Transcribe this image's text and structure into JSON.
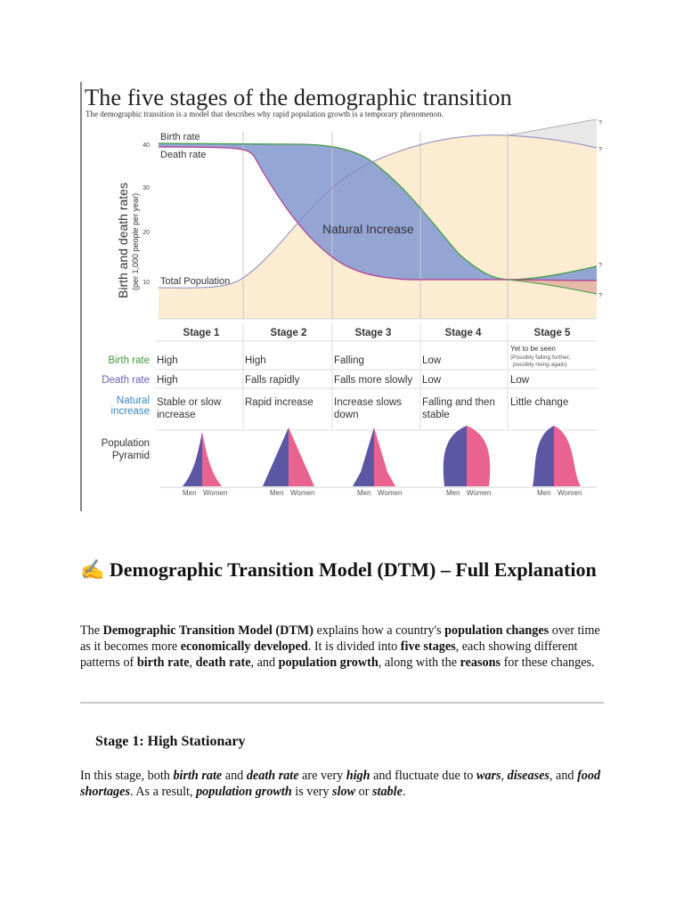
{
  "figure": {
    "title": "The five stages of the demographic transition",
    "subtitle": "The demographic transition is a model that describes why rapid population growth is a temporary phenomenon.",
    "ylabel": "Birth and death rates",
    "ylabel_sub": "(per 1,000 people per year)",
    "yticks": [
      "40",
      "30",
      "20",
      "10"
    ],
    "curve_labels": {
      "birth": "Birth rate",
      "death": "Death rate",
      "population": "Total Population",
      "natural": "Natural Increase"
    },
    "question_mark": "?",
    "stages": [
      "Stage 1",
      "Stage 2",
      "Stage 3",
      "Stage 4",
      "Stage 5"
    ],
    "rows": [
      {
        "label": "Birth rate",
        "color": "#3d9b3d",
        "values": [
          "High",
          "High",
          "Falling",
          "Low",
          "Yet to be seen"
        ],
        "note": [
          "(Possibly falling further,",
          "possibly rising again)"
        ]
      },
      {
        "label": "Death rate",
        "color": "#6a5cb5",
        "values": [
          "High",
          "Falls rapidly",
          "Falls more slowly",
          "Low",
          "Low"
        ]
      },
      {
        "label_lines": [
          "Natural",
          "increase"
        ],
        "color": "#3a86c8",
        "values_lines": [
          [
            "Stable or slow",
            "increase"
          ],
          [
            "Rapid increase"
          ],
          [
            "Increase slows",
            "down"
          ],
          [
            "Falling and then",
            "stable"
          ],
          [
            "Little change"
          ]
        ]
      }
    ],
    "pyramid_label_lines": [
      "Population",
      "Pyramid"
    ],
    "pyramid_men": "Men",
    "pyramid_women": "Women",
    "colors": {
      "men": "#5b57a3",
      "women": "#e8638f",
      "natural_fill": "#8ea1d4",
      "population_fill": "#fbecd2"
    }
  },
  "chart_data": {
    "type": "line",
    "title": "The five stages of the demographic transition",
    "ylabel": "Birth and death rates (per 1,000 people per year)",
    "ylim": [
      0,
      45
    ],
    "categories": [
      "Stage 1",
      "Stage 2",
      "Stage 3",
      "Stage 4",
      "Stage 5"
    ],
    "series": [
      {
        "name": "Birth rate",
        "values": [
          40,
          40,
          30,
          11,
          11
        ]
      },
      {
        "name": "Death rate",
        "values": [
          39,
          25,
          11,
          11,
          11
        ]
      },
      {
        "name": "Total Population",
        "values": [
          9,
          16,
          32,
          41,
          40
        ]
      }
    ]
  },
  "doc": {
    "title_icon": "✍",
    "title": "Demographic Transition Model (DTM) – Full Explanation",
    "intro": [
      {
        "t": "The "
      },
      {
        "t": "Demographic Transition Model (DTM)",
        "b": true
      },
      {
        "t": " explains how a country's "
      },
      {
        "t": "population changes",
        "b": true
      },
      {
        "t": " over time as it becomes more "
      },
      {
        "t": "economically developed",
        "b": true
      },
      {
        "t": ". It is divided into "
      },
      {
        "t": "five stages",
        "b": true
      },
      {
        "t": ", each showing different patterns of "
      },
      {
        "t": "birth rate",
        "b": true
      },
      {
        "t": ", "
      },
      {
        "t": "death rate",
        "b": true
      },
      {
        "t": ", and "
      },
      {
        "t": "population growth",
        "b": true
      },
      {
        "t": ", along with the "
      },
      {
        "t": "reasons",
        "b": true
      },
      {
        "t": " for these changes."
      }
    ],
    "stage1_heading": "Stage 1: High Stationary",
    "stage1_text": [
      {
        "t": "In this stage, both "
      },
      {
        "t": "birth rate",
        "bi": true
      },
      {
        "t": " and "
      },
      {
        "t": "death rate",
        "bi": true
      },
      {
        "t": " are very "
      },
      {
        "t": "high",
        "bi": true
      },
      {
        "t": " and fluctuate due to "
      },
      {
        "t": "wars",
        "bi": true
      },
      {
        "t": ", "
      },
      {
        "t": "diseases",
        "bi": true
      },
      {
        "t": ", and "
      },
      {
        "t": "food shortages",
        "bi": true
      },
      {
        "t": ". As a result, "
      },
      {
        "t": "population growth",
        "bi": true
      },
      {
        "t": " is very "
      },
      {
        "t": "slow",
        "bi": true
      },
      {
        "t": " or "
      },
      {
        "t": "stable",
        "bi": true
      },
      {
        "t": "."
      }
    ]
  }
}
